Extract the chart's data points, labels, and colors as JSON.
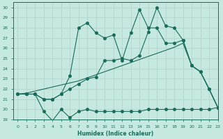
{
  "xlabel": "Humidex (Indice chaleur)",
  "bg_color": "#c5e8e0",
  "line_color": "#1a6b5a",
  "grid_color": "#b0cfc8",
  "xlim": [
    -0.5,
    23
  ],
  "ylim": [
    19,
    30.5
  ],
  "yticks": [
    19,
    20,
    21,
    22,
    23,
    24,
    25,
    26,
    27,
    28,
    29,
    30
  ],
  "xticks": [
    0,
    1,
    2,
    3,
    4,
    5,
    6,
    7,
    8,
    9,
    10,
    11,
    12,
    13,
    14,
    15,
    16,
    17,
    18,
    19,
    20,
    21,
    22,
    23
  ],
  "line_min_x": [
    0,
    1,
    2,
    3,
    4,
    5,
    6,
    7,
    8,
    9,
    10,
    11,
    12,
    13,
    14,
    15,
    16,
    17,
    18,
    19,
    20,
    21,
    22,
    23
  ],
  "line_min_y": [
    21.5,
    21.5,
    21.5,
    19.8,
    18.9,
    20.0,
    19.2,
    19.8,
    20.0,
    19.8,
    19.8,
    19.8,
    19.8,
    19.8,
    19.8,
    20.0,
    20.0,
    20.0,
    20.0,
    20.0,
    20.0,
    20.0,
    20.0,
    20.2
  ],
  "line_smooth_x": [
    0,
    1,
    2,
    3,
    4,
    5,
    6,
    7,
    8,
    9,
    10,
    11,
    12,
    13,
    14,
    15,
    16,
    17,
    18,
    19,
    20,
    21,
    22,
    23
  ],
  "line_smooth_y": [
    21.5,
    21.6,
    21.8,
    22.0,
    22.2,
    22.4,
    22.6,
    22.8,
    23.1,
    23.4,
    23.7,
    24.0,
    24.3,
    24.6,
    24.9,
    25.2,
    25.5,
    25.8,
    26.1,
    26.5,
    24.3,
    23.7,
    22.0,
    20.2
  ],
  "line_upper_x": [
    0,
    1,
    2,
    3,
    4,
    5,
    6,
    7,
    8,
    9,
    10,
    11,
    12,
    13,
    14,
    15,
    16,
    17,
    18,
    19,
    20,
    21,
    22,
    23
  ],
  "line_upper_y": [
    21.5,
    21.5,
    21.5,
    21.0,
    21.0,
    21.5,
    22.0,
    22.5,
    23.0,
    23.2,
    24.8,
    24.8,
    25.0,
    24.8,
    25.3,
    27.6,
    30.0,
    28.2,
    28.0,
    26.8,
    24.3,
    23.7,
    22.0,
    20.2
  ],
  "line_jagged_x": [
    0,
    1,
    2,
    3,
    4,
    5,
    6,
    7,
    8,
    9,
    10,
    11,
    12,
    13,
    14,
    15,
    16,
    17,
    18,
    19,
    20,
    21,
    22,
    23
  ],
  "line_jagged_y": [
    21.5,
    21.5,
    21.5,
    21.0,
    21.0,
    21.5,
    23.3,
    28.0,
    28.5,
    27.5,
    27.0,
    27.3,
    24.8,
    27.5,
    29.8,
    28.0,
    28.0,
    26.5,
    26.5,
    26.8,
    24.3,
    23.7,
    22.0,
    20.2
  ]
}
